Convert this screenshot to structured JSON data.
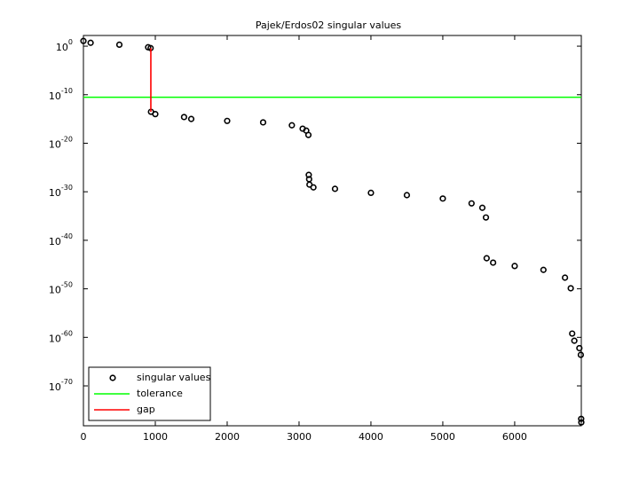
{
  "chart_data": {
    "type": "scatter",
    "title": "Pajek/Erdos02 singular values",
    "xlim": [
      0,
      6927
    ],
    "xticks": [
      0,
      1000,
      2000,
      3000,
      4000,
      5000,
      6000
    ],
    "ylim": [
      6e-79,
      160
    ],
    "yscale": "log",
    "yticks": [
      {
        "value": 1,
        "label": "10^0"
      },
      {
        "value": 1e-10,
        "label": "10^-10"
      },
      {
        "value": 1e-20,
        "label": "10^-20"
      },
      {
        "value": 1e-30,
        "label": "10^-30"
      },
      {
        "value": 1e-40,
        "label": "10^-40"
      },
      {
        "value": 1e-50,
        "label": "10^-50"
      },
      {
        "value": 1e-60,
        "label": "10^-60"
      },
      {
        "value": 1e-70,
        "label": "10^-70"
      }
    ],
    "legend": "lower left",
    "series": [
      {
        "name": "singular values",
        "kind": "markers",
        "color": "#000000",
        "x": [
          0,
          100,
          500,
          900,
          935,
          940,
          1000,
          1400,
          1500,
          2000,
          2500,
          2900,
          3050,
          3100,
          3130,
          3135,
          3140,
          3145,
          3200,
          3500,
          4000,
          4500,
          5000,
          5400,
          5550,
          5600,
          5610,
          5700,
          6000,
          6400,
          6700,
          6780,
          6800,
          6830,
          6900,
          6920,
          6925,
          6927
        ],
        "values": [
          12,
          5,
          2,
          0.6,
          0.4,
          3e-14,
          1e-14,
          2.5e-15,
          1e-15,
          4e-16,
          2e-16,
          5e-17,
          1e-17,
          4e-18,
          5e-19,
          3e-27,
          4e-28,
          3e-29,
          8e-30,
          4e-30,
          6e-31,
          2e-31,
          4e-32,
          4e-33,
          5e-34,
          5e-36,
          2e-44,
          2.5e-45,
          5e-46,
          8e-47,
          2e-48,
          1.3e-50,
          6e-60,
          2e-61,
          6e-63,
          2.5e-64,
          1.6e-77,
          3e-78
        ]
      },
      {
        "name": "tolerance",
        "kind": "line",
        "color": "#00ff00",
        "x": [
          0,
          6927
        ],
        "values": [
          3e-11,
          3e-11
        ]
      },
      {
        "name": "gap",
        "kind": "line",
        "color": "#ff0000",
        "x": [
          938,
          938
        ],
        "values": [
          0.4,
          3e-14
        ]
      }
    ]
  }
}
